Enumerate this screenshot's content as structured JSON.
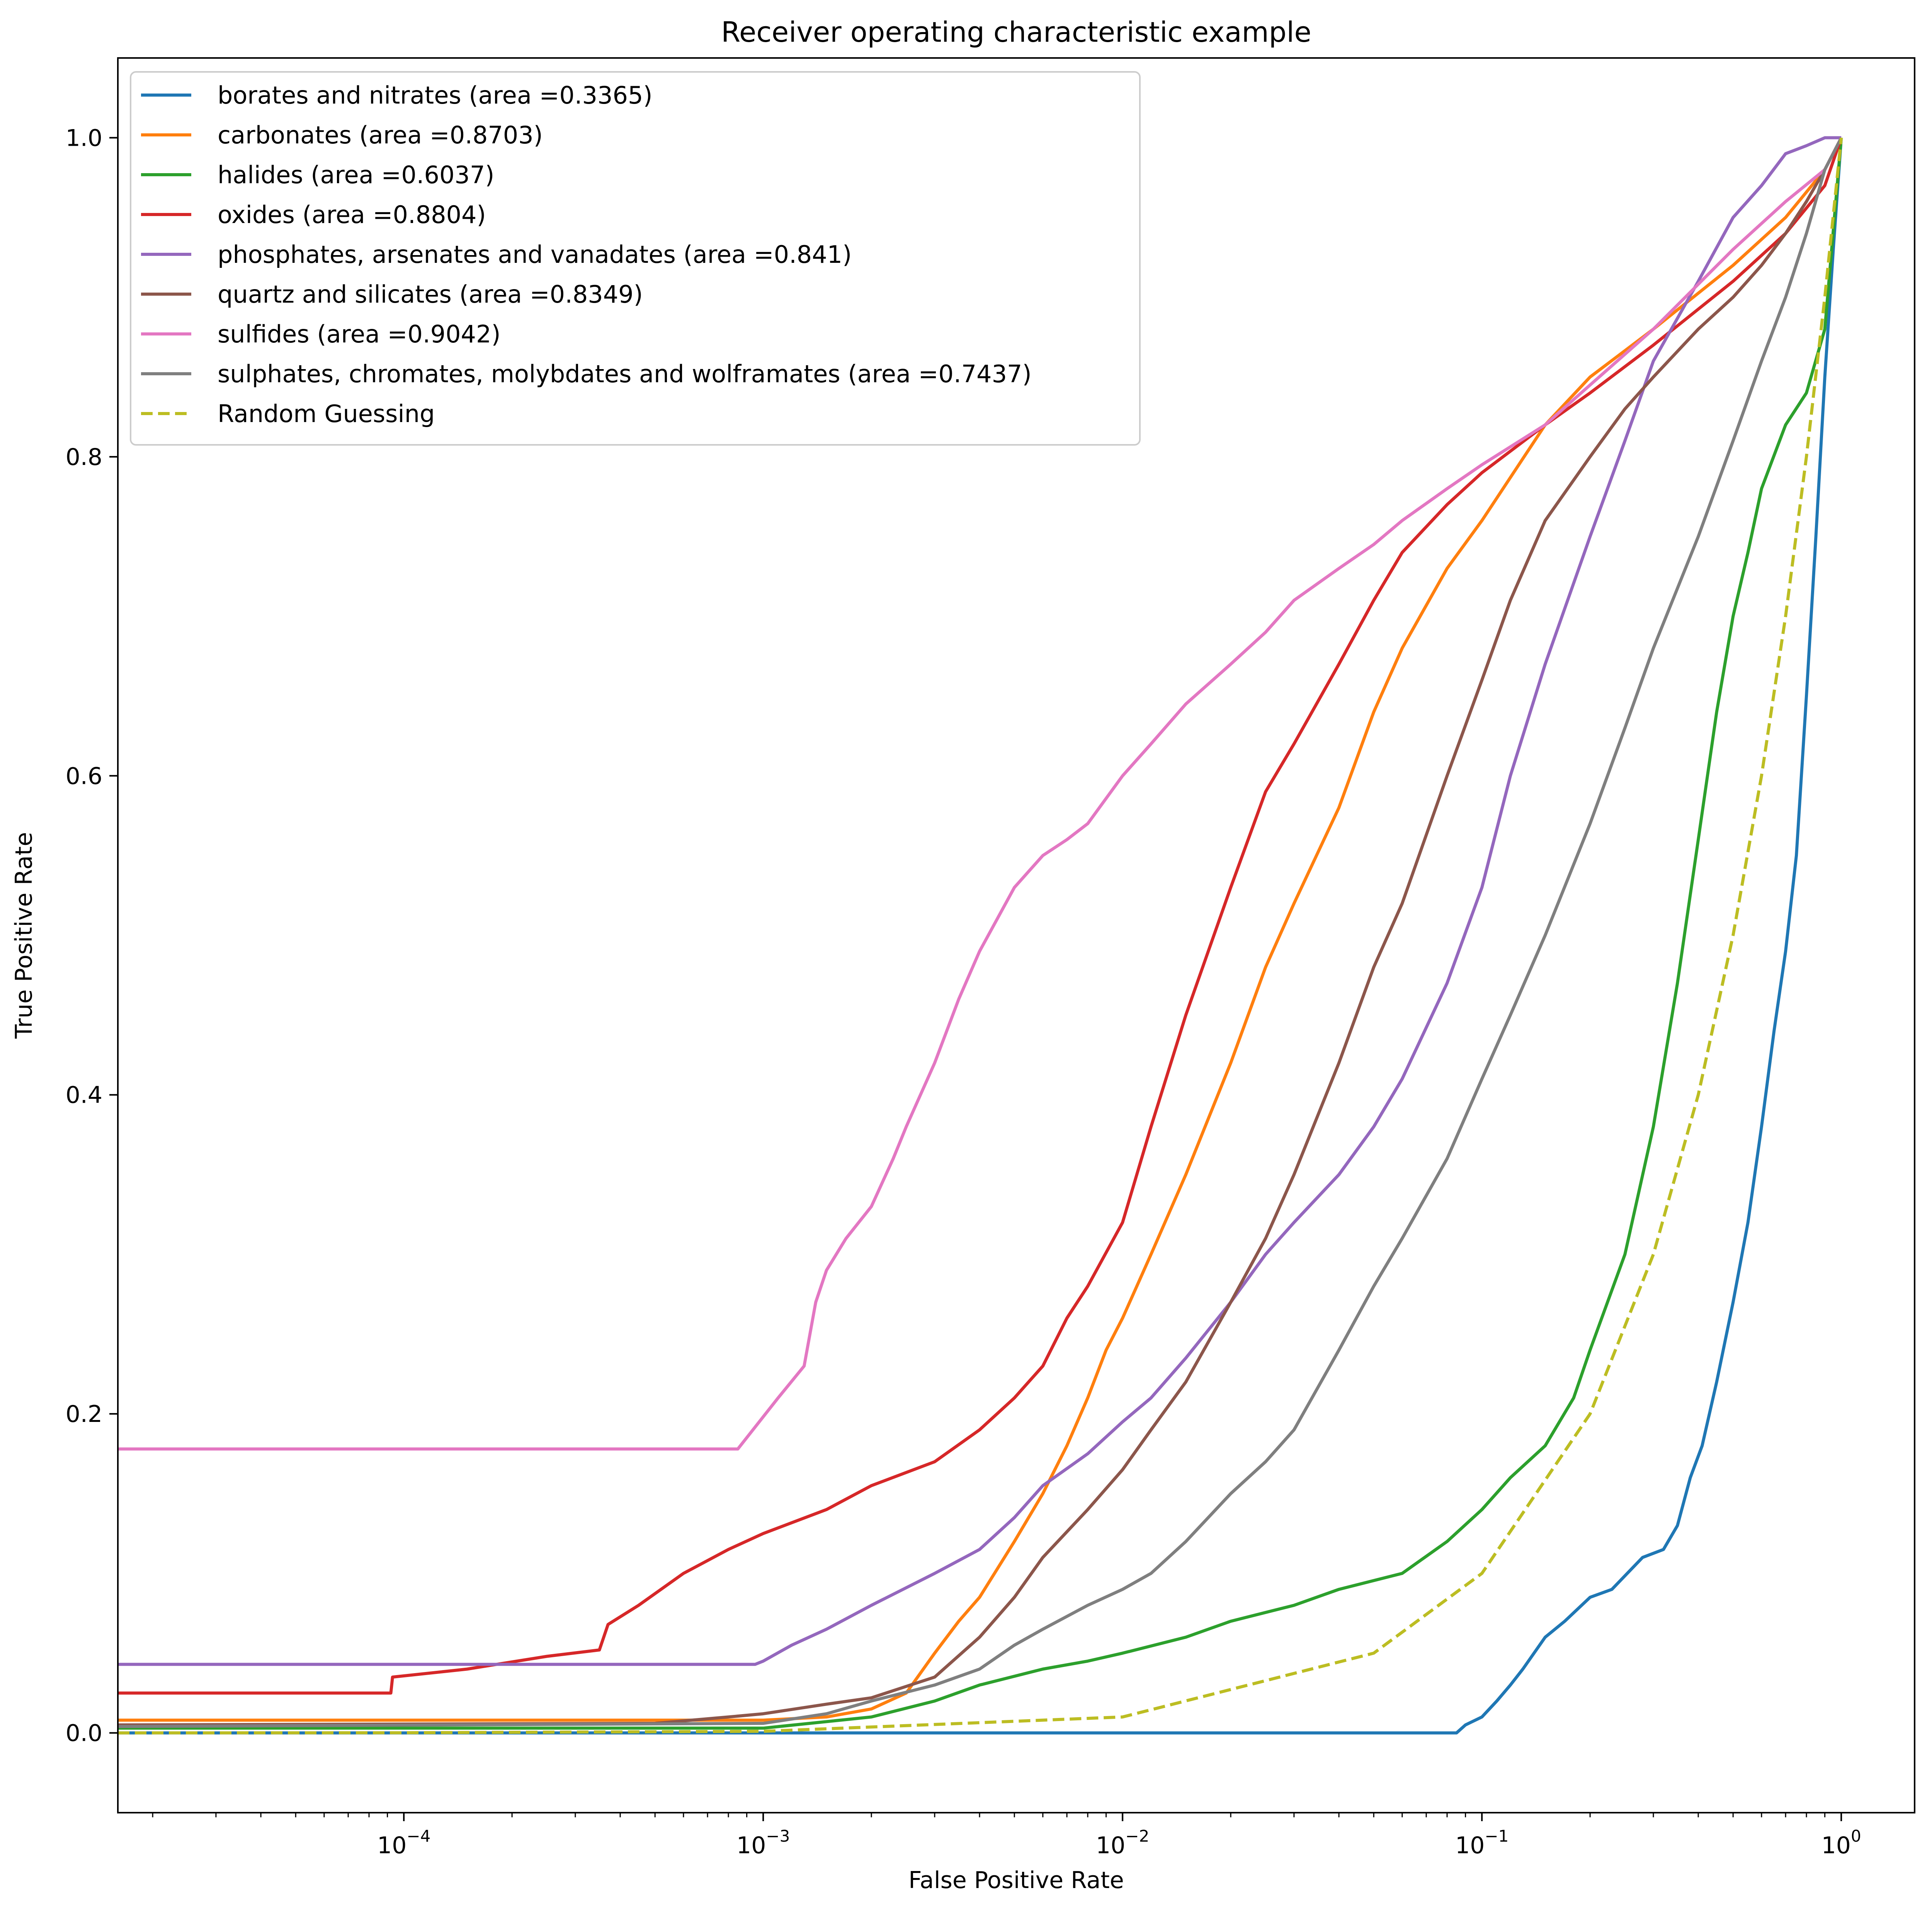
{
  "chart_data": {
    "type": "line",
    "title": "Receiver operating characteristic example",
    "xlabel": "False Positive Rate",
    "ylabel": "True Positive Rate",
    "xscale": "log",
    "xlim": [
      1.6e-05,
      1.6
    ],
    "ylim": [
      -0.05,
      1.05
    ],
    "x_ticks": [
      {
        "value": 0.0001,
        "base": "10",
        "exp": "−4"
      },
      {
        "value": 0.001,
        "base": "10",
        "exp": "−3"
      },
      {
        "value": 0.01,
        "base": "10",
        "exp": "−2"
      },
      {
        "value": 0.1,
        "base": "10",
        "exp": "−1"
      },
      {
        "value": 1,
        "base": "10",
        "exp": "0"
      }
    ],
    "y_ticks": [
      {
        "value": 0.0,
        "label": "0.0"
      },
      {
        "value": 0.2,
        "label": "0.2"
      },
      {
        "value": 0.4,
        "label": "0.4"
      },
      {
        "value": 0.6,
        "label": "0.6"
      },
      {
        "value": 0.8,
        "label": "0.8"
      },
      {
        "value": 1.0,
        "label": "1.0"
      }
    ],
    "grid": false,
    "legend_position": "top-left",
    "series": [
      {
        "name": "borates and nitrates (area =0.3365)",
        "color": "#1f77b4",
        "dash": false,
        "x": [
          1.6e-05,
          0.085,
          0.09,
          0.1,
          0.11,
          0.12,
          0.13,
          0.15,
          0.17,
          0.2,
          0.23,
          0.28,
          0.32,
          0.35,
          0.38,
          0.41,
          0.45,
          0.5,
          0.55,
          0.6,
          0.65,
          0.7,
          0.75,
          0.8,
          0.85,
          0.9,
          0.95,
          1.0
        ],
        "y": [
          0.0,
          0.0,
          0.005,
          0.01,
          0.02,
          0.03,
          0.04,
          0.06,
          0.07,
          0.085,
          0.09,
          0.11,
          0.115,
          0.13,
          0.16,
          0.18,
          0.22,
          0.27,
          0.32,
          0.38,
          0.44,
          0.49,
          0.55,
          0.65,
          0.75,
          0.85,
          0.93,
          1.0
        ]
      },
      {
        "name": "carbonates (area =0.8703)",
        "color": "#ff7f0e",
        "dash": false,
        "x": [
          1.6e-05,
          0.001,
          0.0015,
          0.002,
          0.0025,
          0.003,
          0.0035,
          0.004,
          0.005,
          0.006,
          0.007,
          0.008,
          0.009,
          0.01,
          0.012,
          0.015,
          0.02,
          0.025,
          0.03,
          0.04,
          0.05,
          0.06,
          0.08,
          0.1,
          0.15,
          0.2,
          0.3,
          0.5,
          0.7,
          0.9,
          1.0
        ],
        "y": [
          0.008,
          0.008,
          0.01,
          0.015,
          0.025,
          0.05,
          0.07,
          0.085,
          0.12,
          0.15,
          0.18,
          0.21,
          0.24,
          0.26,
          0.3,
          0.35,
          0.42,
          0.48,
          0.52,
          0.58,
          0.64,
          0.68,
          0.73,
          0.76,
          0.82,
          0.85,
          0.88,
          0.92,
          0.95,
          0.98,
          1.0
        ]
      },
      {
        "name": "halides (area =0.6037)",
        "color": "#2ca02c",
        "dash": false,
        "x": [
          1.6e-05,
          0.001,
          0.002,
          0.003,
          0.004,
          0.006,
          0.008,
          0.01,
          0.015,
          0.02,
          0.03,
          0.04,
          0.06,
          0.08,
          0.1,
          0.12,
          0.15,
          0.18,
          0.2,
          0.25,
          0.3,
          0.35,
          0.4,
          0.45,
          0.5,
          0.55,
          0.6,
          0.7,
          0.8,
          0.9,
          1.0
        ],
        "y": [
          0.003,
          0.003,
          0.01,
          0.02,
          0.03,
          0.04,
          0.045,
          0.05,
          0.06,
          0.07,
          0.08,
          0.09,
          0.1,
          0.12,
          0.14,
          0.16,
          0.18,
          0.21,
          0.24,
          0.3,
          0.38,
          0.47,
          0.56,
          0.64,
          0.7,
          0.74,
          0.78,
          0.82,
          0.84,
          0.88,
          1.0
        ]
      },
      {
        "name": "oxides (area =0.8804)",
        "color": "#d62728",
        "dash": false,
        "x": [
          1.6e-05,
          9.2e-05,
          9.3e-05,
          0.00015,
          0.00025,
          0.00035,
          0.00037,
          0.00045,
          0.0006,
          0.0008,
          0.001,
          0.0015,
          0.002,
          0.003,
          0.004,
          0.005,
          0.006,
          0.007,
          0.008,
          0.01,
          0.012,
          0.015,
          0.02,
          0.025,
          0.03,
          0.04,
          0.05,
          0.06,
          0.08,
          0.1,
          0.15,
          0.2,
          0.3,
          0.5,
          0.7,
          0.9,
          1.0
        ],
        "y": [
          0.025,
          0.025,
          0.035,
          0.04,
          0.048,
          0.052,
          0.068,
          0.08,
          0.1,
          0.115,
          0.125,
          0.14,
          0.155,
          0.17,
          0.19,
          0.21,
          0.23,
          0.26,
          0.28,
          0.32,
          0.38,
          0.45,
          0.53,
          0.59,
          0.62,
          0.67,
          0.71,
          0.74,
          0.77,
          0.79,
          0.82,
          0.84,
          0.87,
          0.91,
          0.94,
          0.97,
          1.0
        ]
      },
      {
        "name": "phosphates, arsenates and vanadates (area =0.841)",
        "color": "#9467bd",
        "dash": false,
        "x": [
          1.6e-05,
          0.00095,
          0.001,
          0.0012,
          0.0015,
          0.002,
          0.003,
          0.004,
          0.005,
          0.006,
          0.008,
          0.01,
          0.012,
          0.015,
          0.02,
          0.025,
          0.03,
          0.04,
          0.05,
          0.06,
          0.08,
          0.1,
          0.12,
          0.15,
          0.2,
          0.25,
          0.3,
          0.4,
          0.5,
          0.6,
          0.7,
          0.8,
          0.9,
          1.0
        ],
        "y": [
          0.043,
          0.043,
          0.045,
          0.055,
          0.065,
          0.08,
          0.1,
          0.115,
          0.135,
          0.155,
          0.175,
          0.195,
          0.21,
          0.235,
          0.27,
          0.3,
          0.32,
          0.35,
          0.38,
          0.41,
          0.47,
          0.53,
          0.6,
          0.67,
          0.75,
          0.81,
          0.86,
          0.91,
          0.95,
          0.97,
          0.99,
          0.995,
          1.0,
          1.0
        ]
      },
      {
        "name": "quartz and silicates (area =0.8349)",
        "color": "#8c564b",
        "dash": false,
        "x": [
          1.6e-05,
          0.0005,
          0.0008,
          0.001,
          0.0015,
          0.002,
          0.003,
          0.004,
          0.005,
          0.006,
          0.008,
          0.01,
          0.012,
          0.015,
          0.02,
          0.025,
          0.03,
          0.04,
          0.05,
          0.06,
          0.08,
          0.1,
          0.12,
          0.15,
          0.2,
          0.25,
          0.3,
          0.4,
          0.5,
          0.6,
          0.7,
          0.8,
          0.9,
          1.0
        ],
        "y": [
          0.005,
          0.006,
          0.01,
          0.012,
          0.018,
          0.022,
          0.035,
          0.06,
          0.085,
          0.11,
          0.14,
          0.165,
          0.19,
          0.22,
          0.27,
          0.31,
          0.35,
          0.42,
          0.48,
          0.52,
          0.6,
          0.66,
          0.71,
          0.76,
          0.8,
          0.83,
          0.85,
          0.88,
          0.9,
          0.92,
          0.94,
          0.96,
          0.98,
          1.0
        ]
      },
      {
        "name": "sulfides (area =0.9042)",
        "color": "#e377c2",
        "dash": false,
        "x": [
          1.6e-05,
          0.00085,
          0.0011,
          0.0013,
          0.0014,
          0.0015,
          0.0017,
          0.002,
          0.0023,
          0.0025,
          0.003,
          0.0035,
          0.004,
          0.005,
          0.006,
          0.007,
          0.008,
          0.01,
          0.012,
          0.015,
          0.02,
          0.025,
          0.03,
          0.04,
          0.05,
          0.06,
          0.08,
          0.1,
          0.15,
          0.2,
          0.3,
          0.5,
          0.7,
          0.9,
          1.0
        ],
        "y": [
          0.178,
          0.178,
          0.21,
          0.23,
          0.27,
          0.29,
          0.31,
          0.33,
          0.36,
          0.38,
          0.42,
          0.46,
          0.49,
          0.53,
          0.55,
          0.56,
          0.57,
          0.6,
          0.62,
          0.645,
          0.67,
          0.69,
          0.71,
          0.73,
          0.745,
          0.76,
          0.78,
          0.795,
          0.82,
          0.845,
          0.88,
          0.93,
          0.96,
          0.98,
          1.0
        ]
      },
      {
        "name": "sulphates, chromates, molybdates and wolframates (area =0.7437)",
        "color": "#7f7f7f",
        "dash": false,
        "x": [
          1.6e-05,
          0.001,
          0.0015,
          0.002,
          0.003,
          0.004,
          0.005,
          0.006,
          0.008,
          0.01,
          0.012,
          0.015,
          0.02,
          0.025,
          0.03,
          0.04,
          0.05,
          0.06,
          0.08,
          0.1,
          0.12,
          0.15,
          0.2,
          0.25,
          0.3,
          0.4,
          0.5,
          0.6,
          0.7,
          0.8,
          0.9,
          1.0
        ],
        "y": [
          0.004,
          0.006,
          0.012,
          0.02,
          0.03,
          0.04,
          0.055,
          0.065,
          0.08,
          0.09,
          0.1,
          0.12,
          0.15,
          0.17,
          0.19,
          0.24,
          0.28,
          0.31,
          0.36,
          0.41,
          0.45,
          0.5,
          0.57,
          0.63,
          0.68,
          0.75,
          0.81,
          0.86,
          0.9,
          0.94,
          0.98,
          1.0
        ]
      },
      {
        "name": "Random Guessing",
        "color": "#bcbd22",
        "dash": true,
        "x": [
          1.6e-05,
          0.0001,
          0.001,
          0.01,
          0.05,
          0.1,
          0.2,
          0.3,
          0.4,
          0.5,
          0.6,
          0.7,
          0.8,
          0.9,
          1.0
        ],
        "y": [
          1.6e-05,
          0.0001,
          0.001,
          0.01,
          0.05,
          0.1,
          0.2,
          0.3,
          0.4,
          0.5,
          0.6,
          0.7,
          0.8,
          0.9,
          1.0
        ]
      }
    ]
  }
}
